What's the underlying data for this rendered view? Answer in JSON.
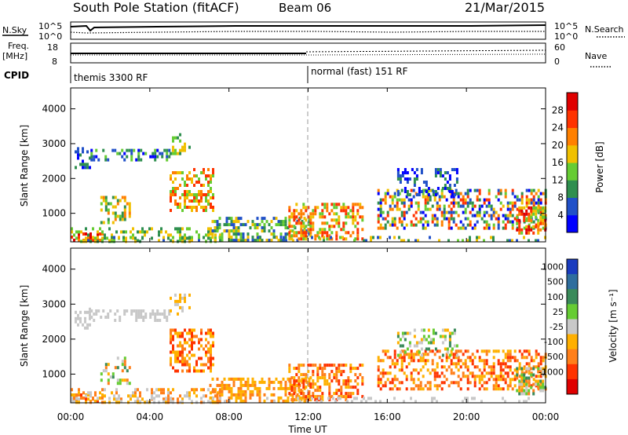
{
  "header": {
    "station": "South Pole Station (fitACF)",
    "beam": "Beam 06",
    "date": "21/Mar/2015"
  },
  "noise_panel": {
    "label_left": "N.Sky",
    "label_right": "N.Search",
    "ticks_left": [
      "10^5",
      "10^0"
    ],
    "ticks_right": [
      "10^5",
      "10^0"
    ]
  },
  "freq_panel": {
    "label_left_1": "Freq.",
    "label_left_2": "[MHz]",
    "label_right": "Nave",
    "ticks_left": [
      "18",
      "8"
    ],
    "ticks_right": [
      "60",
      "0"
    ]
  },
  "cpid": {
    "label": "CPID",
    "segments": [
      {
        "text": "themis 3300 RF",
        "start_hour": 0
      },
      {
        "text": "normal (fast) 151 RF",
        "start_hour": 12
      }
    ]
  },
  "chart_data": [
    {
      "type": "heatmap",
      "name": "power",
      "ylabel": "Slant Range [km]",
      "yticks": [
        "1000",
        "2000",
        "3000",
        "4000"
      ],
      "ylim": [
        180,
        4600
      ],
      "xlim": [
        0,
        24
      ],
      "colorbar": {
        "label": "Power [dB]",
        "ticks": [
          "4",
          "8",
          "12",
          "16",
          "20",
          "24",
          "28"
        ],
        "colors": [
          "#0000ff",
          "#2050c8",
          "#2f8f4f",
          "#66cc33",
          "#f0c000",
          "#ff8000",
          "#ff3300",
          "#e00000"
        ]
      }
    },
    {
      "type": "heatmap",
      "name": "velocity",
      "ylabel": "Slant Range [km]",
      "yticks": [
        "1000",
        "2000",
        "3000",
        "4000"
      ],
      "ylim": [
        180,
        4600
      ],
      "xlim": [
        0,
        24
      ],
      "colorbar": {
        "label": "Velocity [m s⁻¹]",
        "ticks": [
          "1000",
          "500",
          "100",
          "25",
          "-25",
          "-100",
          "-500",
          "-1000"
        ],
        "colors": [
          "#1a3cbf",
          "#2f6e9e",
          "#3a8a5a",
          "#66cc33",
          "#c8c8c8",
          "#ffb000",
          "#ff7f1a",
          "#ff3300",
          "#e00000"
        ]
      }
    }
  ],
  "x_axis": {
    "ticks": [
      "00:00",
      "04:00",
      "08:00",
      "12:00",
      "16:00",
      "20:00",
      "00:00"
    ],
    "label": "Time UT"
  }
}
